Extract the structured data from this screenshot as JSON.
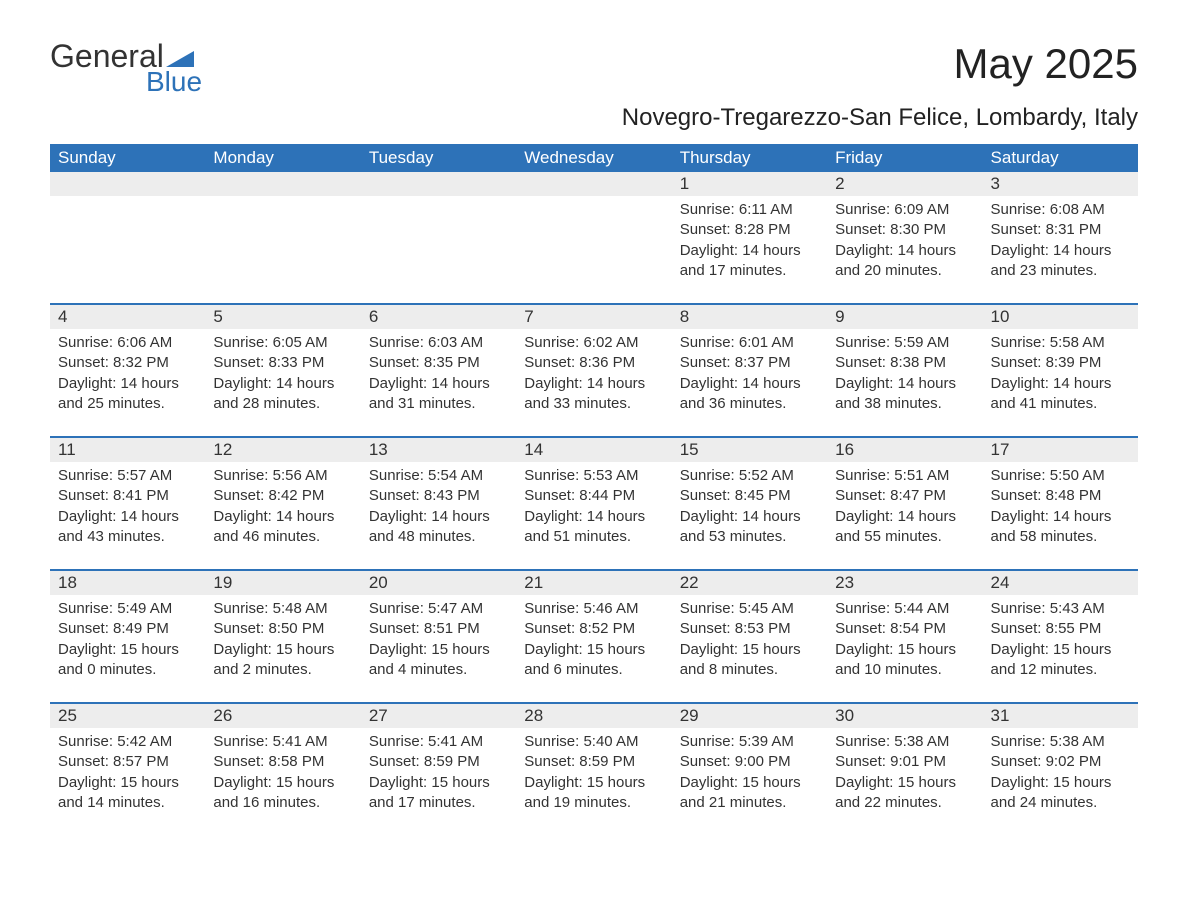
{
  "logo": {
    "top": "General",
    "bottom": "Blue"
  },
  "title": "May 2025",
  "subtitle": "Novegro-Tregarezzo-San Felice, Lombardy, Italy",
  "colors": {
    "header_bg": "#2d72b8",
    "header_text": "#ffffff",
    "daynum_bg": "#ededed",
    "text": "#333333",
    "divider": "#2d72b8",
    "page_bg": "#ffffff"
  },
  "font_sizes": {
    "title": 42,
    "subtitle": 24,
    "weekday": 17,
    "daynum": 17,
    "body": 15
  },
  "weekdays": [
    "Sunday",
    "Monday",
    "Tuesday",
    "Wednesday",
    "Thursday",
    "Friday",
    "Saturday"
  ],
  "weeks": [
    [
      {
        "n": "",
        "lines": []
      },
      {
        "n": "",
        "lines": []
      },
      {
        "n": "",
        "lines": []
      },
      {
        "n": "",
        "lines": []
      },
      {
        "n": "1",
        "lines": [
          "Sunrise: 6:11 AM",
          "Sunset: 8:28 PM",
          "Daylight: 14 hours",
          "and 17 minutes."
        ]
      },
      {
        "n": "2",
        "lines": [
          "Sunrise: 6:09 AM",
          "Sunset: 8:30 PM",
          "Daylight: 14 hours",
          "and 20 minutes."
        ]
      },
      {
        "n": "3",
        "lines": [
          "Sunrise: 6:08 AM",
          "Sunset: 8:31 PM",
          "Daylight: 14 hours",
          "and 23 minutes."
        ]
      }
    ],
    [
      {
        "n": "4",
        "lines": [
          "Sunrise: 6:06 AM",
          "Sunset: 8:32 PM",
          "Daylight: 14 hours",
          "and 25 minutes."
        ]
      },
      {
        "n": "5",
        "lines": [
          "Sunrise: 6:05 AM",
          "Sunset: 8:33 PM",
          "Daylight: 14 hours",
          "and 28 minutes."
        ]
      },
      {
        "n": "6",
        "lines": [
          "Sunrise: 6:03 AM",
          "Sunset: 8:35 PM",
          "Daylight: 14 hours",
          "and 31 minutes."
        ]
      },
      {
        "n": "7",
        "lines": [
          "Sunrise: 6:02 AM",
          "Sunset: 8:36 PM",
          "Daylight: 14 hours",
          "and 33 minutes."
        ]
      },
      {
        "n": "8",
        "lines": [
          "Sunrise: 6:01 AM",
          "Sunset: 8:37 PM",
          "Daylight: 14 hours",
          "and 36 minutes."
        ]
      },
      {
        "n": "9",
        "lines": [
          "Sunrise: 5:59 AM",
          "Sunset: 8:38 PM",
          "Daylight: 14 hours",
          "and 38 minutes."
        ]
      },
      {
        "n": "10",
        "lines": [
          "Sunrise: 5:58 AM",
          "Sunset: 8:39 PM",
          "Daylight: 14 hours",
          "and 41 minutes."
        ]
      }
    ],
    [
      {
        "n": "11",
        "lines": [
          "Sunrise: 5:57 AM",
          "Sunset: 8:41 PM",
          "Daylight: 14 hours",
          "and 43 minutes."
        ]
      },
      {
        "n": "12",
        "lines": [
          "Sunrise: 5:56 AM",
          "Sunset: 8:42 PM",
          "Daylight: 14 hours",
          "and 46 minutes."
        ]
      },
      {
        "n": "13",
        "lines": [
          "Sunrise: 5:54 AM",
          "Sunset: 8:43 PM",
          "Daylight: 14 hours",
          "and 48 minutes."
        ]
      },
      {
        "n": "14",
        "lines": [
          "Sunrise: 5:53 AM",
          "Sunset: 8:44 PM",
          "Daylight: 14 hours",
          "and 51 minutes."
        ]
      },
      {
        "n": "15",
        "lines": [
          "Sunrise: 5:52 AM",
          "Sunset: 8:45 PM",
          "Daylight: 14 hours",
          "and 53 minutes."
        ]
      },
      {
        "n": "16",
        "lines": [
          "Sunrise: 5:51 AM",
          "Sunset: 8:47 PM",
          "Daylight: 14 hours",
          "and 55 minutes."
        ]
      },
      {
        "n": "17",
        "lines": [
          "Sunrise: 5:50 AM",
          "Sunset: 8:48 PM",
          "Daylight: 14 hours",
          "and 58 minutes."
        ]
      }
    ],
    [
      {
        "n": "18",
        "lines": [
          "Sunrise: 5:49 AM",
          "Sunset: 8:49 PM",
          "Daylight: 15 hours",
          "and 0 minutes."
        ]
      },
      {
        "n": "19",
        "lines": [
          "Sunrise: 5:48 AM",
          "Sunset: 8:50 PM",
          "Daylight: 15 hours",
          "and 2 minutes."
        ]
      },
      {
        "n": "20",
        "lines": [
          "Sunrise: 5:47 AM",
          "Sunset: 8:51 PM",
          "Daylight: 15 hours",
          "and 4 minutes."
        ]
      },
      {
        "n": "21",
        "lines": [
          "Sunrise: 5:46 AM",
          "Sunset: 8:52 PM",
          "Daylight: 15 hours",
          "and 6 minutes."
        ]
      },
      {
        "n": "22",
        "lines": [
          "Sunrise: 5:45 AM",
          "Sunset: 8:53 PM",
          "Daylight: 15 hours",
          "and 8 minutes."
        ]
      },
      {
        "n": "23",
        "lines": [
          "Sunrise: 5:44 AM",
          "Sunset: 8:54 PM",
          "Daylight: 15 hours",
          "and 10 minutes."
        ]
      },
      {
        "n": "24",
        "lines": [
          "Sunrise: 5:43 AM",
          "Sunset: 8:55 PM",
          "Daylight: 15 hours",
          "and 12 minutes."
        ]
      }
    ],
    [
      {
        "n": "25",
        "lines": [
          "Sunrise: 5:42 AM",
          "Sunset: 8:57 PM",
          "Daylight: 15 hours",
          "and 14 minutes."
        ]
      },
      {
        "n": "26",
        "lines": [
          "Sunrise: 5:41 AM",
          "Sunset: 8:58 PM",
          "Daylight: 15 hours",
          "and 16 minutes."
        ]
      },
      {
        "n": "27",
        "lines": [
          "Sunrise: 5:41 AM",
          "Sunset: 8:59 PM",
          "Daylight: 15 hours",
          "and 17 minutes."
        ]
      },
      {
        "n": "28",
        "lines": [
          "Sunrise: 5:40 AM",
          "Sunset: 8:59 PM",
          "Daylight: 15 hours",
          "and 19 minutes."
        ]
      },
      {
        "n": "29",
        "lines": [
          "Sunrise: 5:39 AM",
          "Sunset: 9:00 PM",
          "Daylight: 15 hours",
          "and 21 minutes."
        ]
      },
      {
        "n": "30",
        "lines": [
          "Sunrise: 5:38 AM",
          "Sunset: 9:01 PM",
          "Daylight: 15 hours",
          "and 22 minutes."
        ]
      },
      {
        "n": "31",
        "lines": [
          "Sunrise: 5:38 AM",
          "Sunset: 9:02 PM",
          "Daylight: 15 hours",
          "and 24 minutes."
        ]
      }
    ]
  ]
}
